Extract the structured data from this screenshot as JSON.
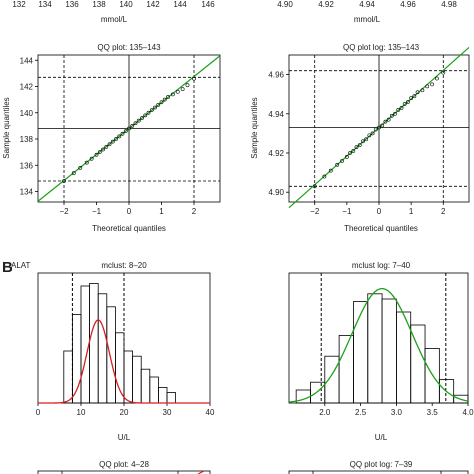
{
  "top_strip": {
    "left": {
      "ticks": [
        "132",
        "134",
        "136",
        "138",
        "140",
        "142",
        "144",
        "146"
      ],
      "xlabel": "mmol/L"
    },
    "right": {
      "ticks": [
        "4.90",
        "4.92",
        "4.94",
        "4.96",
        "4.98"
      ],
      "xlabel": "mmol/L"
    }
  },
  "panel_b": {
    "letter": "B",
    "label": "ALAT"
  },
  "chart_data": [
    {
      "id": "qq-na",
      "type": "scatter",
      "title": "QQ plot: 135–143",
      "xlabel": "Theoretical quantiles",
      "ylabel": "Sample quantiles",
      "xlim": [
        -2.8,
        2.8
      ],
      "ylim": [
        133.2,
        144.4
      ],
      "xticks": [
        -2,
        -1,
        0,
        1,
        2
      ],
      "xtick_labels": [
        "−2",
        "−1",
        "0",
        "1",
        "2"
      ],
      "yticks": [
        134,
        136,
        138,
        140,
        142,
        144
      ],
      "ytick_labels": [
        "134",
        "136",
        "138",
        "140",
        "142",
        "144"
      ],
      "vlines_dashed": [
        -2,
        2
      ],
      "hlines_dashed": [
        134.8,
        142.7
      ],
      "vline_solid": 0,
      "hline_solid": 138.8,
      "fit_line": {
        "intercept": 138.8,
        "slope": 1.98,
        "color": "#1aa11a"
      },
      "x": [
        -2.0,
        -1.7,
        -1.5,
        -1.3,
        -1.15,
        -1.0,
        -0.9,
        -0.8,
        -0.7,
        -0.6,
        -0.5,
        -0.4,
        -0.3,
        -0.2,
        -0.1,
        0.0,
        0.1,
        0.2,
        0.3,
        0.4,
        0.5,
        0.6,
        0.7,
        0.8,
        0.9,
        1.0,
        1.1,
        1.2,
        1.35,
        1.5,
        1.65,
        1.8,
        2.0
      ],
      "y": [
        134.8,
        135.4,
        135.8,
        136.2,
        136.5,
        136.8,
        137.0,
        137.2,
        137.4,
        137.6,
        137.8,
        138.0,
        138.2,
        138.4,
        138.6,
        138.8,
        139.0,
        139.2,
        139.4,
        139.6,
        139.8,
        140.0,
        140.2,
        140.4,
        140.6,
        140.8,
        141.0,
        141.2,
        141.4,
        141.6,
        141.8,
        142.1,
        142.6
      ]
    },
    {
      "id": "qq-na-log",
      "type": "scatter",
      "title": "QQ plot log: 135–143",
      "xlabel": "Theoretical quantiles",
      "ylabel": "Sample quantiles",
      "xlim": [
        -2.8,
        2.8
      ],
      "ylim": [
        4.895,
        4.97
      ],
      "xticks": [
        -2,
        -1,
        0,
        1,
        2
      ],
      "xtick_labels": [
        "−2",
        "−1",
        "0",
        "1",
        "2"
      ],
      "yticks": [
        4.9,
        4.92,
        4.94,
        4.96
      ],
      "ytick_labels": [
        "4.90",
        "4.92",
        "4.94",
        "4.96"
      ],
      "vlines_dashed": [
        -2,
        2
      ],
      "hlines_dashed": [
        4.903,
        4.962
      ],
      "vline_solid": 0,
      "hline_solid": 4.933,
      "fit_line": {
        "intercept": 4.933,
        "slope": 0.0146,
        "color": "#1aa11a"
      },
      "x": [
        -2.0,
        -1.7,
        -1.5,
        -1.3,
        -1.15,
        -1.0,
        -0.9,
        -0.8,
        -0.7,
        -0.6,
        -0.5,
        -0.4,
        -0.3,
        -0.2,
        -0.1,
        0.0,
        0.1,
        0.2,
        0.3,
        0.4,
        0.5,
        0.6,
        0.7,
        0.8,
        0.9,
        1.0,
        1.1,
        1.2,
        1.35,
        1.5,
        1.65,
        1.8,
        2.0
      ],
      "y": [
        4.903,
        4.908,
        4.911,
        4.914,
        4.916,
        4.918,
        4.92,
        4.921,
        4.923,
        4.924,
        4.926,
        4.927,
        4.929,
        4.93,
        4.932,
        4.933,
        4.934,
        4.936,
        4.937,
        4.939,
        4.94,
        4.942,
        4.943,
        4.945,
        4.946,
        4.948,
        4.949,
        4.951,
        4.952,
        4.954,
        4.955,
        4.958,
        4.961
      ]
    },
    {
      "id": "hist-alat",
      "type": "bar",
      "title": "mclust: 8–20",
      "xlabel": "U/L",
      "xlim": [
        0,
        40
      ],
      "xticks": [
        0,
        10,
        20,
        30,
        40
      ],
      "xtick_labels": [
        "0",
        "10",
        "20",
        "30",
        "40"
      ],
      "bin_edges": [
        6,
        8,
        10,
        12,
        14,
        16,
        18,
        20,
        22,
        24,
        26,
        28,
        30,
        32
      ],
      "counts": [
        40,
        68,
        90,
        92,
        84,
        74,
        54,
        40,
        36,
        26,
        20,
        12,
        8
      ],
      "ymax": 100,
      "vlines_dashed": [
        8,
        20
      ],
      "curve": {
        "kind": "normal",
        "mean": 14,
        "sd": 2.6,
        "peak": 64,
        "color": "#d42020"
      }
    },
    {
      "id": "hist-alat-log",
      "type": "bar",
      "title": "mclust log: 7–40",
      "xlabel": "U/L",
      "xlim": [
        1.5,
        4.0
      ],
      "xticks": [
        2.0,
        2.5,
        3.0,
        3.5,
        4.0
      ],
      "xtick_labels": [
        "2.0",
        "2.5",
        "3.0",
        "3.5",
        "4.0"
      ],
      "bin_edges": [
        1.6,
        1.8,
        2.0,
        2.2,
        2.4,
        2.6,
        2.8,
        3.0,
        3.2,
        3.4,
        3.6,
        3.8,
        4.0
      ],
      "counts": [
        10,
        16,
        36,
        52,
        78,
        84,
        80,
        70,
        60,
        42,
        18,
        6
      ],
      "ymax": 100,
      "vlines_dashed": [
        1.95,
        3.69
      ],
      "curve": {
        "kind": "normal",
        "mean": 2.8,
        "sd": 0.42,
        "peak": 88,
        "color": "#1aa11a"
      }
    },
    {
      "id": "qq-alat",
      "type": "scatter",
      "title": "QQ plot: 4–28"
    },
    {
      "id": "qq-alat-log",
      "type": "scatter",
      "title": "QQ plot log: 7–39"
    }
  ]
}
